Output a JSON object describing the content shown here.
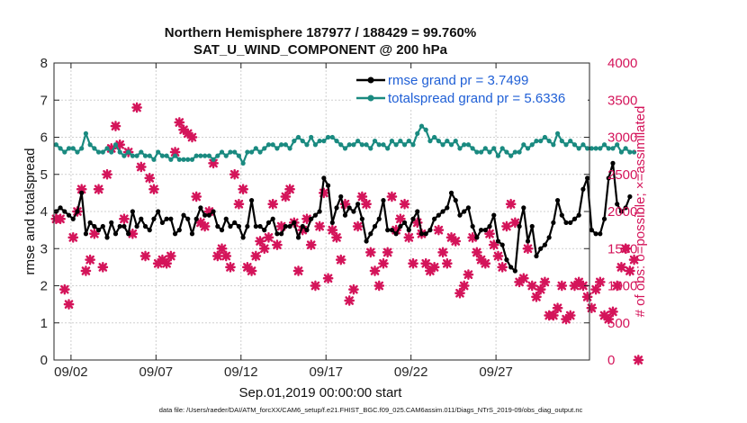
{
  "chart_data": {
    "type": "line",
    "title": "Northern Hemisphere 187977 / 188429 = 99.760%",
    "subtitle": "SAT_U_WIND_COMPONENT @ 200 hPa",
    "xlabel": "Sep.01,2019 00:00:00 start",
    "ylabel": "rmse and totalspread",
    "y2label": "# of obs: o=possible; ×=assimilated",
    "footnote": "data file: /Users/raeder/DAI/ATM_forcXX/CAM6_setup/f.e21.FHIST_BGC.f09_025.CAM6assim.011/Diags_NTrS_2019-09/obs_diag_output.nc",
    "xlim": [
      0,
      31.5
    ],
    "ylim": [
      0,
      8
    ],
    "y2lim": [
      0,
      4000
    ],
    "x_ticks": [
      1,
      6,
      11,
      16,
      21,
      26
    ],
    "x_tick_labels": [
      "09/02",
      "09/07",
      "09/12",
      "09/17",
      "09/22",
      "09/27"
    ],
    "y_ticks": [
      0,
      1,
      2,
      3,
      4,
      5,
      6,
      7,
      8
    ],
    "y_tick_labels": [
      "0",
      "1",
      "2",
      "3",
      "4",
      "5",
      "6",
      "7",
      "8"
    ],
    "y2_ticks": [
      0,
      500,
      1000,
      1500,
      2000,
      2500,
      3000,
      3500,
      4000
    ],
    "y2_tick_labels": [
      "0",
      "500",
      "1000",
      "1500",
      "2000",
      "2500",
      "3000",
      "3500",
      "4000"
    ],
    "colors": {
      "rmse": "#000000",
      "spread": "#1a8a80",
      "obs": "#d4145a",
      "legend_text": "#1f5fd6"
    },
    "series": [
      {
        "name": "rmse grand pr = 3.7499",
        "axis": "left",
        "x_start": 0.125,
        "x_step": 0.25,
        "values": [
          4.0,
          4.1,
          4.0,
          3.9,
          3.8,
          4.0,
          4.5,
          3.4,
          3.7,
          3.6,
          3.5,
          3.6,
          3.3,
          3.7,
          3.4,
          3.6,
          3.6,
          3.4,
          4.0,
          3.6,
          3.8,
          3.6,
          3.5,
          3.8,
          4.0,
          3.7,
          3.8,
          3.8,
          3.4,
          3.5,
          3.9,
          3.8,
          3.4,
          3.8,
          4.1,
          3.9,
          3.9,
          4.0,
          3.6,
          3.5,
          3.8,
          3.6,
          3.7,
          3.6,
          3.3,
          3.6,
          4.3,
          3.6,
          3.6,
          3.5,
          3.7,
          3.8,
          3.4,
          3.4,
          3.6,
          3.6,
          3.7,
          3.3,
          3.6,
          3.5,
          3.8,
          3.9,
          4.0,
          4.9,
          4.7,
          3.7,
          4.1,
          4.4,
          3.9,
          4.1,
          4.0,
          4.2,
          3.8,
          3.2,
          3.4,
          3.6,
          3.8,
          4.3,
          3.5,
          3.5,
          3.4,
          3.6,
          3.7,
          3.5,
          3.8,
          4.0,
          3.4,
          3.4,
          3.5,
          3.8,
          3.9,
          4.0,
          4.1,
          4.5,
          4.3,
          3.9,
          4.0,
          4.1,
          3.6,
          3.3,
          3.5,
          3.5,
          3.6,
          3.9,
          3.2,
          3.1,
          2.7,
          2.5,
          2.4,
          3.6,
          4.1,
          3.2,
          3.6,
          2.8,
          3.0,
          3.1,
          3.3,
          3.7,
          4.3,
          3.9,
          3.7,
          3.7,
          3.8,
          3.9,
          4.6,
          4.9,
          3.5,
          3.4,
          3.4,
          3.8,
          4.9,
          5.3,
          4.2,
          4.0,
          4.1,
          4.4
        ]
      },
      {
        "name": "totalspread grand pr = 5.6336",
        "axis": "left",
        "x_start": 0.125,
        "x_step": 0.25,
        "values": [
          5.8,
          5.7,
          5.6,
          5.7,
          5.7,
          5.6,
          5.7,
          6.1,
          5.8,
          5.7,
          5.6,
          5.6,
          5.7,
          5.6,
          5.8,
          5.6,
          5.5,
          5.6,
          5.5,
          5.5,
          5.6,
          5.5,
          5.5,
          5.4,
          5.6,
          5.5,
          5.5,
          5.4,
          5.5,
          5.4,
          5.4,
          5.4,
          5.4,
          5.5,
          5.5,
          5.5,
          5.5,
          5.4,
          5.5,
          5.6,
          5.5,
          5.6,
          5.6,
          5.5,
          5.3,
          5.6,
          5.6,
          5.7,
          5.6,
          5.7,
          5.8,
          5.8,
          5.7,
          5.8,
          5.8,
          5.7,
          5.9,
          6.0,
          5.9,
          5.8,
          6.0,
          5.8,
          5.9,
          5.9,
          6.0,
          6.0,
          5.9,
          5.8,
          5.7,
          5.8,
          5.8,
          5.9,
          5.8,
          5.8,
          5.7,
          5.9,
          5.8,
          5.8,
          5.7,
          5.9,
          5.8,
          5.9,
          5.8,
          5.9,
          5.8,
          6.1,
          6.3,
          6.2,
          5.9,
          6.0,
          5.9,
          5.8,
          5.9,
          5.8,
          5.9,
          5.7,
          5.8,
          5.8,
          5.7,
          5.6,
          5.6,
          5.7,
          5.6,
          5.7,
          5.5,
          5.7,
          5.6,
          5.5,
          5.6,
          5.6,
          5.8,
          5.7,
          5.8,
          5.9,
          5.9,
          6.0,
          5.9,
          5.8,
          6.1,
          5.9,
          5.8,
          5.9,
          5.8,
          5.7,
          5.8,
          5.7,
          5.7,
          5.7,
          5.7,
          5.8,
          5.7,
          5.7,
          5.8,
          5.6,
          5.7,
          5.6,
          5.6
        ]
      },
      {
        "name": "obs assimilated",
        "axis": "right",
        "x_start": 0.125,
        "x_step": 0.25,
        "values": [
          1900,
          1900,
          950,
          750,
          1650,
          2000,
          2300,
          1200,
          1350,
          1700,
          2300,
          1250,
          2500,
          2850,
          3150,
          2900,
          1900,
          2800,
          1700,
          3400,
          2600,
          1400,
          2450,
          2300,
          1300,
          1350,
          1300,
          1400,
          2800,
          3200,
          3100,
          3050,
          3000,
          2200,
          1850,
          1800,
          2000,
          2650,
          1400,
          1500,
          1400,
          1250,
          2500,
          2100,
          2300,
          1250,
          1200,
          1400,
          1600,
          1500,
          1650,
          2100,
          1550,
          1800,
          2200,
          2300,
          1850,
          1200,
          1750,
          1900,
          1550,
          1000,
          1800,
          2250,
          1100,
          1750,
          1650,
          1350,
          2100,
          800,
          950,
          1800,
          2200,
          2100,
          1450,
          1200,
          1000,
          1300,
          1450,
          2200,
          1750,
          1900,
          2100,
          1650,
          1300,
          1850,
          1700,
          1300,
          1200,
          1250,
          1750,
          1450,
          1300,
          1650,
          1600,
          900,
          1000,
          1150,
          1650,
          1450,
          1350,
          1300,
          1700,
          1550,
          1400,
          1250,
          1800,
          2100,
          1850,
          1050,
          1100,
          1500,
          1000,
          850,
          950,
          1050,
          600,
          600,
          700,
          1000,
          550,
          600,
          1000,
          1050,
          1000,
          850,
          700,
          950,
          1050,
          600,
          550,
          650,
          1000,
          1250,
          1500,
          1200,
          1350,
          0
        ]
      }
    ],
    "legend": [
      {
        "label": "rmse grand pr = 3.7499",
        "series": "rmse"
      },
      {
        "label": "totalspread grand pr = 5.6336",
        "series": "spread"
      }
    ]
  }
}
